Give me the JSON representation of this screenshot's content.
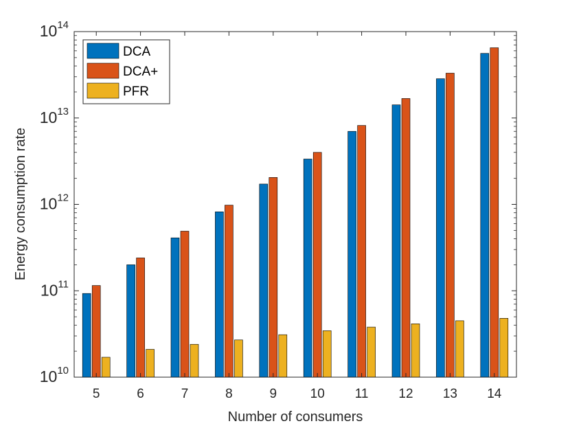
{
  "chart_data": {
    "type": "bar",
    "y_scale": "log",
    "categories": [
      "5",
      "6",
      "7",
      "8",
      "9",
      "10",
      "11",
      "12",
      "13",
      "14"
    ],
    "series": [
      {
        "name": "DCA",
        "color": "#0072BD",
        "values": [
          93000000000.0,
          200000000000.0,
          410000000000.0,
          820000000000.0,
          1720000000000.0,
          3350000000000.0,
          7000000000000.0,
          14200000000000.0,
          28500000000000.0,
          56000000000000.0
        ]
      },
      {
        "name": "DCA+",
        "color": "#D95319",
        "values": [
          115000000000.0,
          240000000000.0,
          490000000000.0,
          980000000000.0,
          2050000000000.0,
          4000000000000.0,
          8200000000000.0,
          16800000000000.0,
          33000000000000.0,
          65000000000000.0
        ]
      },
      {
        "name": "PFR",
        "color": "#EDB120",
        "values": [
          17000000000.0,
          21000000000.0,
          24000000000.0,
          27000000000.0,
          31000000000.0,
          34500000000.0,
          38000000000.0,
          41500000000.0,
          45000000000.0,
          48000000000.0
        ]
      }
    ],
    "ylim": [
      10000000000.0,
      100000000000000.0
    ],
    "y_ticks": [
      {
        "value": 10000000000.0,
        "base": "10",
        "exp": "10"
      },
      {
        "value": 100000000000.0,
        "base": "10",
        "exp": "11"
      },
      {
        "value": 1000000000000.0,
        "base": "10",
        "exp": "12"
      },
      {
        "value": 10000000000000.0,
        "base": "10",
        "exp": "13"
      },
      {
        "value": 100000000000000.0,
        "base": "10",
        "exp": "14"
      }
    ],
    "xlabel": "Number of consumers",
    "ylabel": "Energy consumption rate",
    "legend_position": "top-left",
    "grid": false
  }
}
